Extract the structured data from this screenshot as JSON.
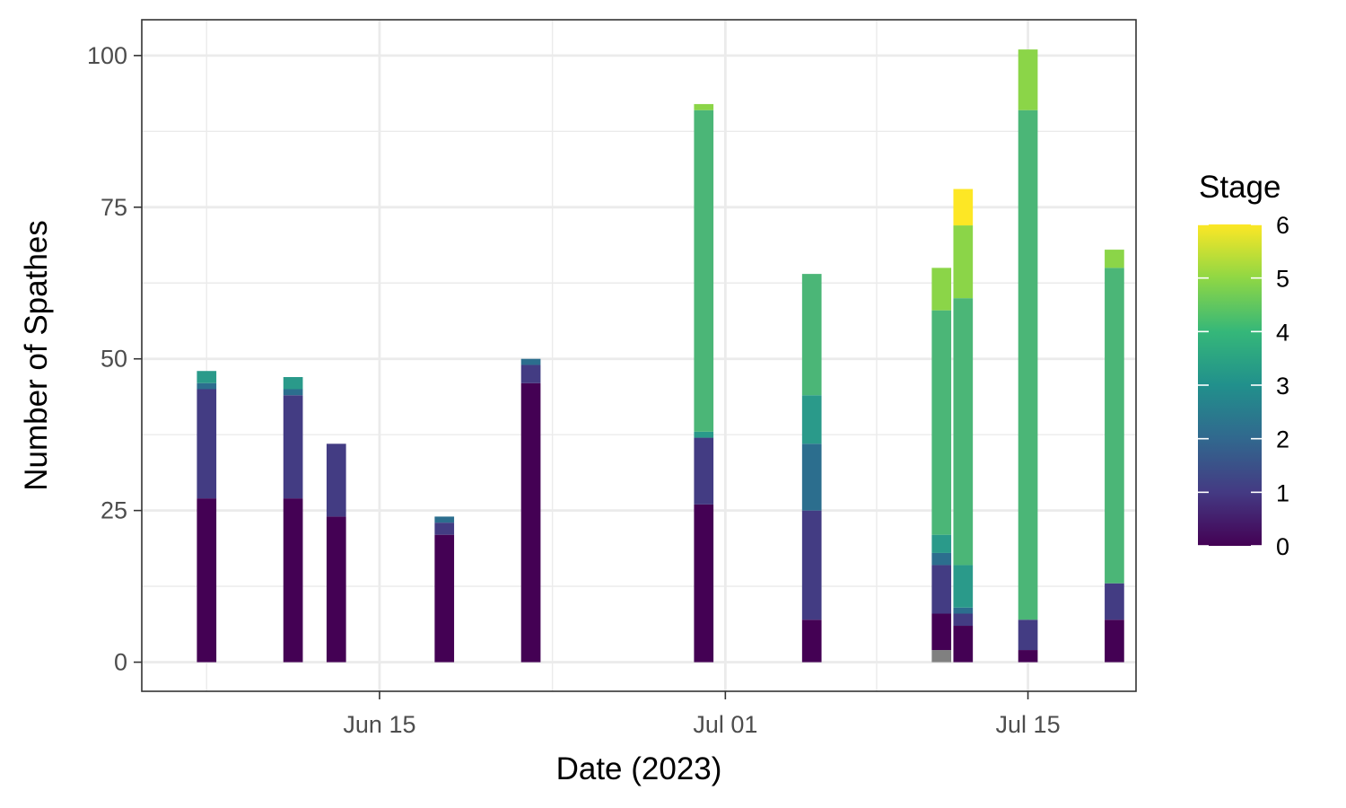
{
  "chart_data": {
    "type": "bar",
    "stacked": true,
    "xlabel": "Date (2023)",
    "ylabel": "Number of Spathes",
    "ylim": [
      -4.8,
      105.9
    ],
    "yticks": [
      0,
      25,
      50,
      75,
      100
    ],
    "xlim": [
      "2023-06-04",
      "2023-07-20"
    ],
    "xticks": [
      {
        "date": "2023-06-15",
        "label": "Jun 15"
      },
      {
        "date": "2023-07-01",
        "label": "Jul 01"
      },
      {
        "date": "2023-07-15",
        "label": "Jul 15"
      }
    ],
    "grid": true,
    "legend": {
      "title": "Stage",
      "type": "colorbar",
      "placement": "right",
      "range": [
        0,
        6
      ],
      "breaks": [
        0,
        1,
        2,
        3,
        4,
        5,
        6
      ],
      "colors": [
        "#440154",
        "#443A83",
        "#31688E",
        "#21908C",
        "#35B779",
        "#8FD744",
        "#FDE725"
      ]
    },
    "na_color": "#808080",
    "stages": [
      "NA",
      "0",
      "1",
      "2",
      "3",
      "4",
      "5",
      "6"
    ],
    "stage_colors": [
      "#808080",
      "#440154",
      "#433C83",
      "#2C6E8E",
      "#2A9A8A",
      "#4BB677",
      "#8BD548",
      "#FDE725"
    ],
    "bars": [
      {
        "date": "2023-06-07",
        "values": [
          0,
          27,
          18,
          1,
          2,
          0,
          0,
          0
        ]
      },
      {
        "date": "2023-06-11",
        "values": [
          0,
          27,
          17,
          1,
          2,
          0,
          0,
          0
        ]
      },
      {
        "date": "2023-06-13",
        "values": [
          0,
          24,
          12,
          0,
          0,
          0,
          0,
          0
        ]
      },
      {
        "date": "2023-06-18",
        "values": [
          0,
          21,
          2,
          1,
          0,
          0,
          0,
          0
        ]
      },
      {
        "date": "2023-06-22",
        "values": [
          0,
          46,
          3,
          1,
          0,
          0,
          0,
          0
        ]
      },
      {
        "date": "2023-06-30",
        "values": [
          0,
          26,
          11,
          0,
          1,
          53,
          1,
          0
        ]
      },
      {
        "date": "2023-07-05",
        "values": [
          0,
          7,
          18,
          11,
          8,
          20,
          0,
          0
        ]
      },
      {
        "date": "2023-07-11",
        "values": [
          2,
          6,
          8,
          2,
          3,
          37,
          7,
          0
        ]
      },
      {
        "date": "2023-07-12",
        "values": [
          0,
          6,
          2,
          1,
          7,
          44,
          12,
          6
        ]
      },
      {
        "date": "2023-07-15",
        "values": [
          0,
          2,
          5,
          0,
          0,
          84,
          10,
          0
        ]
      },
      {
        "date": "2023-07-19",
        "values": [
          0,
          7,
          6,
          0,
          0,
          52,
          3,
          0
        ]
      }
    ]
  }
}
